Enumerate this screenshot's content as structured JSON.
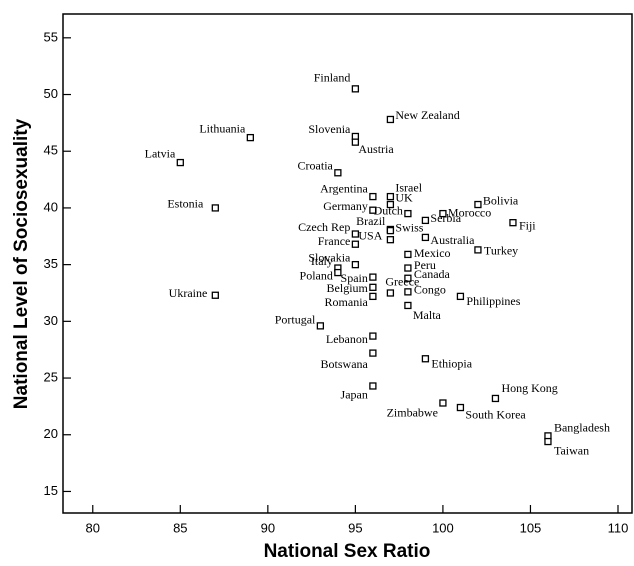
{
  "chart_data": {
    "type": "scatter",
    "x_label": "National Sex Ratio",
    "y_label": "National Level of Sociosexuality",
    "xlim": [
      78.3,
      110.8
    ],
    "xticks": [
      80,
      85,
      90,
      95,
      100,
      105,
      110
    ],
    "ylim": [
      13.1,
      57.1
    ],
    "yticks": [
      15,
      20,
      25,
      30,
      35,
      40,
      45,
      50,
      55
    ],
    "color": "#000000",
    "labels": [
      "Finland",
      "New Zealand",
      "Lithuania",
      "Slovenia",
      "Austria",
      "Latvia",
      "Croatia",
      "Estonia",
      "Argentina",
      "Israel",
      "Germany",
      "UK",
      "Bolivia",
      "Morocco",
      "Dutch",
      "Brazil",
      "Swiss",
      "Serbia",
      "Fiji",
      "Czech Rep",
      "Australia",
      "France",
      "USA",
      "Turkey",
      "Mexico",
      "Slovakia",
      "Italy",
      "Peru",
      "Poland",
      "Spain",
      "Canada",
      "Greece",
      "Belgium",
      "Congo",
      "Romania",
      "Ukraine",
      "Philippines",
      "Malta",
      "Portugal",
      "Lebanon",
      "Ethiopia",
      "Botswana",
      "Japan",
      "Hong Kong",
      "Zimbabwe",
      "South Korea",
      "Bangladesh",
      "Taiwan"
    ],
    "x": [
      95,
      97,
      89,
      95,
      95,
      85,
      94,
      87,
      96,
      97,
      96,
      97,
      102,
      100,
      98,
      97,
      97,
      99,
      104,
      95,
      99,
      95,
      97,
      102,
      98,
      95,
      94,
      98,
      94,
      96,
      98,
      97,
      96,
      98,
      96,
      87,
      101,
      98,
      93,
      96,
      99,
      96,
      96,
      103,
      100,
      101,
      106,
      106
    ],
    "y": [
      50.5,
      47.8,
      46.2,
      46.3,
      45.8,
      44,
      43.1,
      40,
      41,
      41,
      39.8,
      40.3,
      40.3,
      39.5,
      39.5,
      38.1,
      38,
      38.9,
      38.7,
      37.7,
      37.4,
      36.8,
      37.2,
      36.3,
      35.9,
      35,
      34.7,
      34.7,
      34.3,
      33.9,
      33.8,
      32.5,
      33,
      32.6,
      32.2,
      32.3,
      32.2,
      31.4,
      29.6,
      28.7,
      26.7,
      27.2,
      24.3,
      23.2,
      22.8,
      22.4,
      19.9,
      19.4
    ]
  }
}
